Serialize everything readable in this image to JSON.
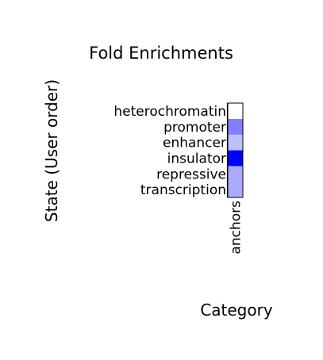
{
  "chart_data": {
    "type": "heatmap",
    "title": "Fold Enrichments",
    "xlabel": "Category",
    "ylabel": "State (User order)",
    "columns": [
      "anchors"
    ],
    "rows": [
      "heterochromatin",
      "promoter",
      "enhancer",
      "insulator",
      "repressive",
      "transcription"
    ],
    "values": [
      [
        0.0
      ],
      [
        0.5
      ],
      [
        0.25
      ],
      [
        1.0
      ],
      [
        0.33
      ],
      [
        0.33
      ]
    ],
    "color_low": "#ffffff",
    "color_high": "#0000ff",
    "grid": false,
    "legend": "none"
  }
}
